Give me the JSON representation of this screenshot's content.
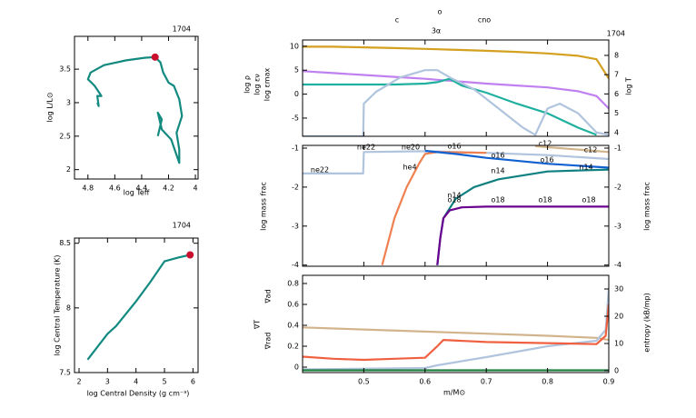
{
  "chart_data": [
    {
      "type": "line",
      "label": "1704",
      "xlabel": "log Teff",
      "ylabel": "log L/L⊙",
      "xlim": [
        4.9,
        3.98
      ],
      "ylim": [
        1.86,
        3.99
      ],
      "xticks": [
        4.8,
        4.6,
        4.4,
        4.2,
        4
      ],
      "yticks": [
        2,
        2.5,
        3,
        3.5
      ],
      "series": [
        {
          "color": "#138a80",
          "x": [
            4.73,
            4.72,
            4.73,
            4.7,
            4.75,
            4.8,
            4.78,
            4.68,
            4.52,
            4.38,
            4.3,
            4.26,
            4.24,
            4.2,
            4.16,
            4.12,
            4.1,
            4.14,
            4.12,
            4.12,
            4.18,
            4.25,
            4.28,
            4.25,
            4.28
          ],
          "values": [
            3.0,
            2.95,
            3.1,
            3.1,
            3.25,
            3.35,
            3.45,
            3.56,
            3.63,
            3.67,
            3.68,
            3.6,
            3.45,
            3.3,
            3.25,
            3.05,
            2.8,
            2.55,
            2.3,
            2.1,
            2.45,
            2.6,
            2.85,
            2.75,
            2.5
          ]
        },
        {
          "color": "#c8102e",
          "marker": "dot",
          "x": [
            4.3
          ],
          "values": [
            3.68
          ]
        }
      ]
    },
    {
      "type": "line",
      "label": "1704",
      "xlabel": "log Central Density (g cm⁻³)",
      "ylabel": "log Central Temperature (K)",
      "xlim": [
        1.84,
        6.18
      ],
      "ylim": [
        7.5,
        8.54
      ],
      "xticks": [
        2,
        3,
        4,
        5,
        6
      ],
      "yticks": [
        7.5,
        8,
        8.5
      ],
      "series": [
        {
          "color": "#138a80",
          "x": [
            2.3,
            3.0,
            3.3,
            4.0,
            4.5,
            5.0,
            5.5,
            5.9
          ],
          "values": [
            7.6,
            7.8,
            7.86,
            8.05,
            8.2,
            8.36,
            8.39,
            8.41
          ]
        },
        {
          "color": "#c8102e",
          "marker": "dot",
          "x": [
            5.9
          ],
          "values": [
            8.41
          ]
        }
      ]
    },
    {
      "type": "line",
      "label": "1704",
      "annotations": [
        {
          "text": "c",
          "color": "#000000"
        },
        {
          "text": "o",
          "color": "#000000"
        },
        {
          "text": "cno",
          "color": "#000000"
        },
        {
          "text": "3α",
          "color": "#000000"
        }
      ],
      "ylabel_parts": [
        {
          "text": "log ρ",
          "color": "#c080f0"
        },
        {
          "text": "log εν",
          "color": "#20b0a0"
        },
        {
          "text": "log εmax",
          "color": "#a8bcd8"
        }
      ],
      "y2label": {
        "text": "log T",
        "color": "#d4a020"
      },
      "xlim": [
        0.4,
        0.9
      ],
      "ylim": [
        -8.8,
        11.3
      ],
      "y2lim": [
        3.8,
        8.8
      ],
      "xticks": [
        0.5,
        0.6,
        0.7,
        0.8,
        0.9
      ],
      "xtick_labels": false,
      "yticks": [
        -5,
        0,
        5,
        10
      ],
      "y2ticks": [
        4,
        5,
        6,
        7,
        8
      ],
      "series": [
        {
          "color": "#d4a020",
          "axis": "y2",
          "x": [
            0.4,
            0.45,
            0.5,
            0.55,
            0.6,
            0.62,
            0.64,
            0.66,
            0.7,
            0.75,
            0.8,
            0.85,
            0.88,
            0.9
          ],
          "values": [
            8.45,
            8.45,
            8.42,
            8.38,
            8.34,
            8.32,
            8.3,
            8.28,
            8.24,
            8.18,
            8.1,
            7.98,
            7.8,
            6.8
          ]
        },
        {
          "color": "#c080f0",
          "x": [
            0.4,
            0.45,
            0.5,
            0.55,
            0.6,
            0.62,
            0.64,
            0.66,
            0.7,
            0.75,
            0.8,
            0.85,
            0.88,
            0.9
          ],
          "values": [
            4.8,
            4.4,
            4.0,
            3.6,
            3.2,
            3.0,
            2.8,
            2.6,
            2.2,
            1.8,
            1.4,
            0.6,
            -0.4,
            -3
          ]
        },
        {
          "color": "#20b0a0",
          "x": [
            0.4,
            0.45,
            0.5,
            0.55,
            0.6,
            0.62,
            0.64,
            0.66,
            0.7,
            0.75,
            0.8,
            0.85,
            0.88
          ],
          "values": [
            2,
            2,
            2,
            2,
            2.2,
            2.5,
            3.2,
            1.8,
            0.3,
            -2,
            -4,
            -7,
            -8.5
          ]
        },
        {
          "color": "#b0c4de",
          "x": [
            0.4,
            0.499,
            0.5,
            0.52,
            0.56,
            0.6,
            0.62,
            0.64,
            0.68,
            0.72,
            0.76,
            0.78,
            0.8,
            0.82,
            0.85,
            0.88,
            0.9
          ],
          "values": [
            -8.8,
            -8.8,
            -2,
            0.5,
            3.5,
            5.0,
            5.0,
            3.5,
            1,
            -3,
            -7,
            -8.5,
            -3,
            -2,
            -4,
            -8,
            -8.5
          ]
        }
      ]
    },
    {
      "type": "line",
      "ylabel": "log mass frac",
      "y2label": {
        "text": "log mass frac",
        "color": "#000000"
      },
      "annotations": [
        {
          "text": "ne22",
          "color": "#a8bcd8"
        },
        {
          "text": "ne22",
          "color": "#a8bcd8"
        },
        {
          "text": "ne20",
          "color": "#a8bcd8"
        },
        {
          "text": "he4",
          "color": "#f08050"
        },
        {
          "text": "o16",
          "color": "#1060d0"
        },
        {
          "text": "o16",
          "color": "#1060d0"
        },
        {
          "text": "o16",
          "color": "#1060d0"
        },
        {
          "text": "c12",
          "color": "#d2b48c"
        },
        {
          "text": "c12",
          "color": "#d2b48c"
        },
        {
          "text": "n14",
          "color": "#108080"
        },
        {
          "text": "n14",
          "color": "#108080"
        },
        {
          "text": "n14",
          "color": "#108080"
        },
        {
          "text": "o18",
          "color": "#6a0090"
        },
        {
          "text": "o18",
          "color": "#6a0090"
        },
        {
          "text": "o18",
          "color": "#6a0090"
        },
        {
          "text": "o18",
          "color": "#6a0090"
        }
      ],
      "xlim": [
        0.4,
        0.9
      ],
      "ylim": [
        -4.03,
        -0.93
      ],
      "y2lim": [
        -4.03,
        -0.93
      ],
      "xticks": [
        0.5,
        0.6,
        0.7,
        0.8,
        0.9
      ],
      "xtick_labels": false,
      "yticks": [
        -4,
        -3,
        -2,
        -1
      ],
      "y2ticks": [
        -4,
        -3,
        -2,
        -1
      ],
      "series": [
        {
          "color": "#b0c4de",
          "x": [
            0.4,
            0.499,
            0.5,
            0.6,
            0.7,
            0.8,
            0.9
          ],
          "values": [
            -1.65,
            -1.65,
            -1.1,
            -1.08,
            -1.12,
            -1.18,
            -1.28
          ]
        },
        {
          "color": "#f08050",
          "x": [
            0.53,
            0.55,
            0.57,
            0.59,
            0.6,
            0.62,
            0.7
          ],
          "values": [
            -4,
            -2.8,
            -2,
            -1.4,
            -1.15,
            -1.1,
            -1.12
          ]
        },
        {
          "color": "#1060d0",
          "x": [
            0.6,
            0.65,
            0.7,
            0.8,
            0.9
          ],
          "values": [
            -1.07,
            -1.15,
            -1.25,
            -1.4,
            -1.5
          ]
        },
        {
          "color": "#d2b48c",
          "x": [
            0.78,
            0.82,
            0.86,
            0.9
          ],
          "values": [
            -0.95,
            -1.0,
            -1.05,
            -1.1
          ]
        },
        {
          "color": "#108080",
          "x": [
            0.62,
            0.625,
            0.63,
            0.65,
            0.68,
            0.72,
            0.8,
            0.9
          ],
          "values": [
            -4,
            -3.3,
            -2.8,
            -2.3,
            -2.0,
            -1.8,
            -1.6,
            -1.55
          ]
        },
        {
          "color": "#6a0090",
          "x": [
            0.62,
            0.625,
            0.63,
            0.64,
            0.66,
            0.7,
            0.9
          ],
          "values": [
            -4,
            -3.3,
            -2.8,
            -2.6,
            -2.52,
            -2.5,
            -2.5
          ]
        }
      ]
    },
    {
      "type": "line",
      "xlabel": "m/M⊙",
      "ylabel_parts": [
        {
          "text": "∇ad",
          "color": "#d2b48c"
        },
        {
          "text": "∇T",
          "color": "#e02010"
        },
        {
          "text": "∇rad",
          "color": "#f08050"
        }
      ],
      "y2label": {
        "text": "entropy (kB/mp)",
        "color": "#000000"
      },
      "xlim": [
        0.4,
        0.9
      ],
      "ylim": [
        -0.052,
        0.878
      ],
      "y2lim": [
        -0.67,
        35
      ],
      "xticks": [
        0.5,
        0.6,
        0.7,
        0.8,
        0.9
      ],
      "yticks": [
        0,
        0.2,
        0.4,
        0.6,
        0.8
      ],
      "y2ticks": [
        0,
        10,
        20,
        30
      ],
      "series": [
        {
          "color": "#d2b48c",
          "x": [
            0.4,
            0.5,
            0.6,
            0.7,
            0.8,
            0.88,
            0.9
          ],
          "values": [
            0.38,
            0.36,
            0.34,
            0.32,
            0.3,
            0.28,
            0.26
          ]
        },
        {
          "color": "#b0c4de",
          "axis": "y2",
          "x": [
            0.4,
            0.6,
            0.62,
            0.7,
            0.8,
            0.88,
            0.895,
            0.9
          ],
          "values": [
            0.5,
            1,
            2,
            5,
            9,
            11,
            15,
            30
          ]
        },
        {
          "color": "#f06040",
          "x": [
            0.4,
            0.45,
            0.5,
            0.55,
            0.6,
            0.62,
            0.63,
            0.7,
            0.8,
            0.88,
            0.895,
            0.9
          ],
          "values": [
            0.1,
            0.08,
            0.07,
            0.08,
            0.09,
            0.2,
            0.26,
            0.24,
            0.23,
            0.22,
            0.3,
            0.6
          ]
        },
        {
          "color": "#208040",
          "x": [
            0.4,
            0.9
          ],
          "values": [
            -0.03,
            -0.03
          ]
        }
      ]
    }
  ]
}
